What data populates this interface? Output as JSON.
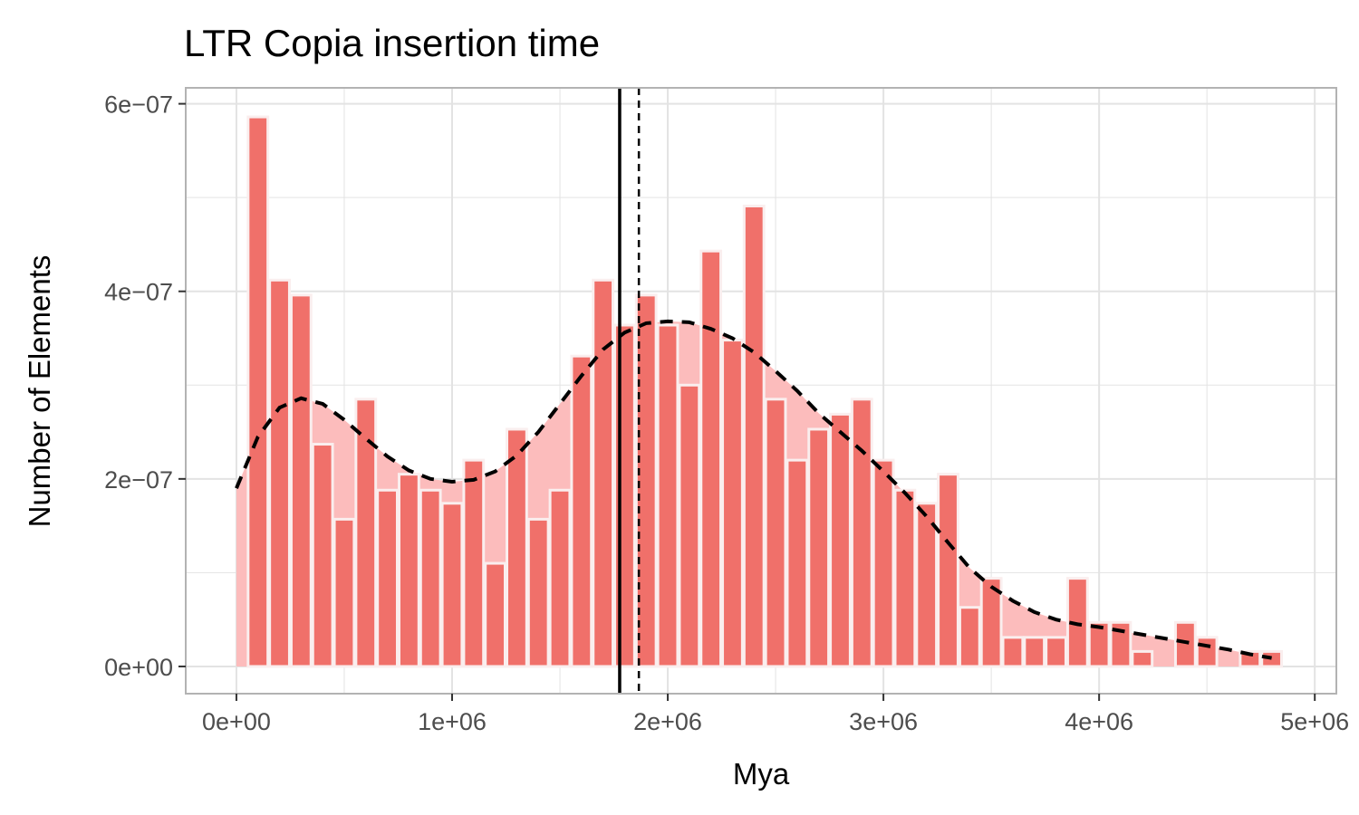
{
  "chart_data": {
    "type": "bar",
    "title": "LTR Copia insertion time",
    "xlabel": "Mya",
    "ylabel": "Number of Elements",
    "xlim": [
      -235000,
      5100000
    ],
    "ylim": [
      -2.9e-08,
      6.17e-07
    ],
    "grid": true,
    "x_ticks": [
      {
        "value": 0,
        "label": "0e+00"
      },
      {
        "value": 1000000,
        "label": "1e+06"
      },
      {
        "value": 2000000,
        "label": "2e+06"
      },
      {
        "value": 3000000,
        "label": "3e+06"
      },
      {
        "value": 4000000,
        "label": "4e+06"
      },
      {
        "value": 5000000,
        "label": "5e+06"
      }
    ],
    "y_ticks": [
      {
        "value": 0,
        "label": "0e+00"
      },
      {
        "value": 2e-07,
        "label": "2e−07"
      },
      {
        "value": 4e-07,
        "label": "4e−07"
      },
      {
        "value": 6e-07,
        "label": "6e−07"
      }
    ],
    "bin_width": 100000,
    "bin_centers": [
      100000,
      200000,
      300000,
      400000,
      500000,
      600000,
      700000,
      800000,
      900000,
      1000000,
      1100000,
      1200000,
      1300000,
      1400000,
      1500000,
      1600000,
      1700000,
      1800000,
      1900000,
      2000000,
      2100000,
      2200000,
      2300000,
      2400000,
      2500000,
      2600000,
      2700000,
      2800000,
      2900000,
      3000000,
      3100000,
      3200000,
      3300000,
      3400000,
      3500000,
      3600000,
      3700000,
      3800000,
      3900000,
      4000000,
      4100000,
      4200000,
      4300000,
      4400000,
      4500000,
      4600000,
      4700000,
      4800000
    ],
    "values": [
      5.86e-07,
      4.12e-07,
      3.96e-07,
      2.37e-07,
      1.57e-07,
      2.85e-07,
      1.88e-07,
      2.05e-07,
      1.88e-07,
      1.74e-07,
      2.2e-07,
      1.1e-07,
      2.53e-07,
      1.57e-07,
      1.88e-07,
      3.31e-07,
      4.12e-07,
      3.64e-07,
      3.96e-07,
      3.64e-07,
      3e-07,
      4.43e-07,
      3.48e-07,
      4.91e-07,
      2.85e-07,
      2.2e-07,
      2.53e-07,
      2.69e-07,
      2.85e-07,
      2.2e-07,
      1.88e-07,
      1.74e-07,
      2.05e-07,
      6.3e-08,
      9.4e-08,
      3.1e-08,
      3.1e-08,
      3.1e-08,
      9.4e-08,
      4.7e-08,
      4.7e-08,
      1.6e-08,
      0,
      4.7e-08,
      3.1e-08,
      0,
      1.6e-08,
      1.6e-08
    ],
    "density": {
      "x": [
        0,
        100000,
        200000,
        300000,
        400000,
        500000,
        600000,
        700000,
        800000,
        900000,
        1000000,
        1100000,
        1200000,
        1300000,
        1400000,
        1500000,
        1600000,
        1700000,
        1800000,
        1900000,
        2000000,
        2100000,
        2200000,
        2300000,
        2400000,
        2500000,
        2600000,
        2700000,
        2800000,
        2900000,
        3000000,
        3100000,
        3200000,
        3300000,
        3400000,
        3500000,
        3600000,
        3700000,
        3800000,
        3900000,
        4000000,
        4100000,
        4200000,
        4300000,
        4400000,
        4500000,
        4600000,
        4700000,
        4800000
      ],
      "y": [
        1.9e-07,
        2.45e-07,
        2.76e-07,
        2.86e-07,
        2.8e-07,
        2.63e-07,
        2.43e-07,
        2.24e-07,
        2.09e-07,
        2e-07,
        1.97e-07,
        1.99e-07,
        2.08e-07,
        2.25e-07,
        2.5e-07,
        2.8e-07,
        3.1e-07,
        3.38e-07,
        3.56e-07,
        3.66e-07,
        3.68e-07,
        3.67e-07,
        3.6e-07,
        3.5e-07,
        3.35e-07,
        3.15e-07,
        2.94e-07,
        2.7e-07,
        2.5e-07,
        2.3e-07,
        2.08e-07,
        1.85e-07,
        1.6e-07,
        1.32e-07,
        1.05e-07,
        8.5e-08,
        7e-08,
        5.8e-08,
        5e-08,
        4.5e-08,
        4.2e-08,
        3.8e-08,
        3.4e-08,
        3e-08,
        2.6e-08,
        2.2e-08,
        1.8e-08,
        1.3e-08,
        9e-09
      ]
    },
    "vlines": [
      {
        "value": 1777000,
        "style": "solid"
      },
      {
        "value": 1866000,
        "style": "dashed"
      }
    ],
    "colors": {
      "bar": "#f0706a",
      "density_fill": "#fcbcbc",
      "bar_outline": "#faeeee",
      "grid": "#e3e3e3",
      "panel_border": "#b3b3b3"
    }
  }
}
